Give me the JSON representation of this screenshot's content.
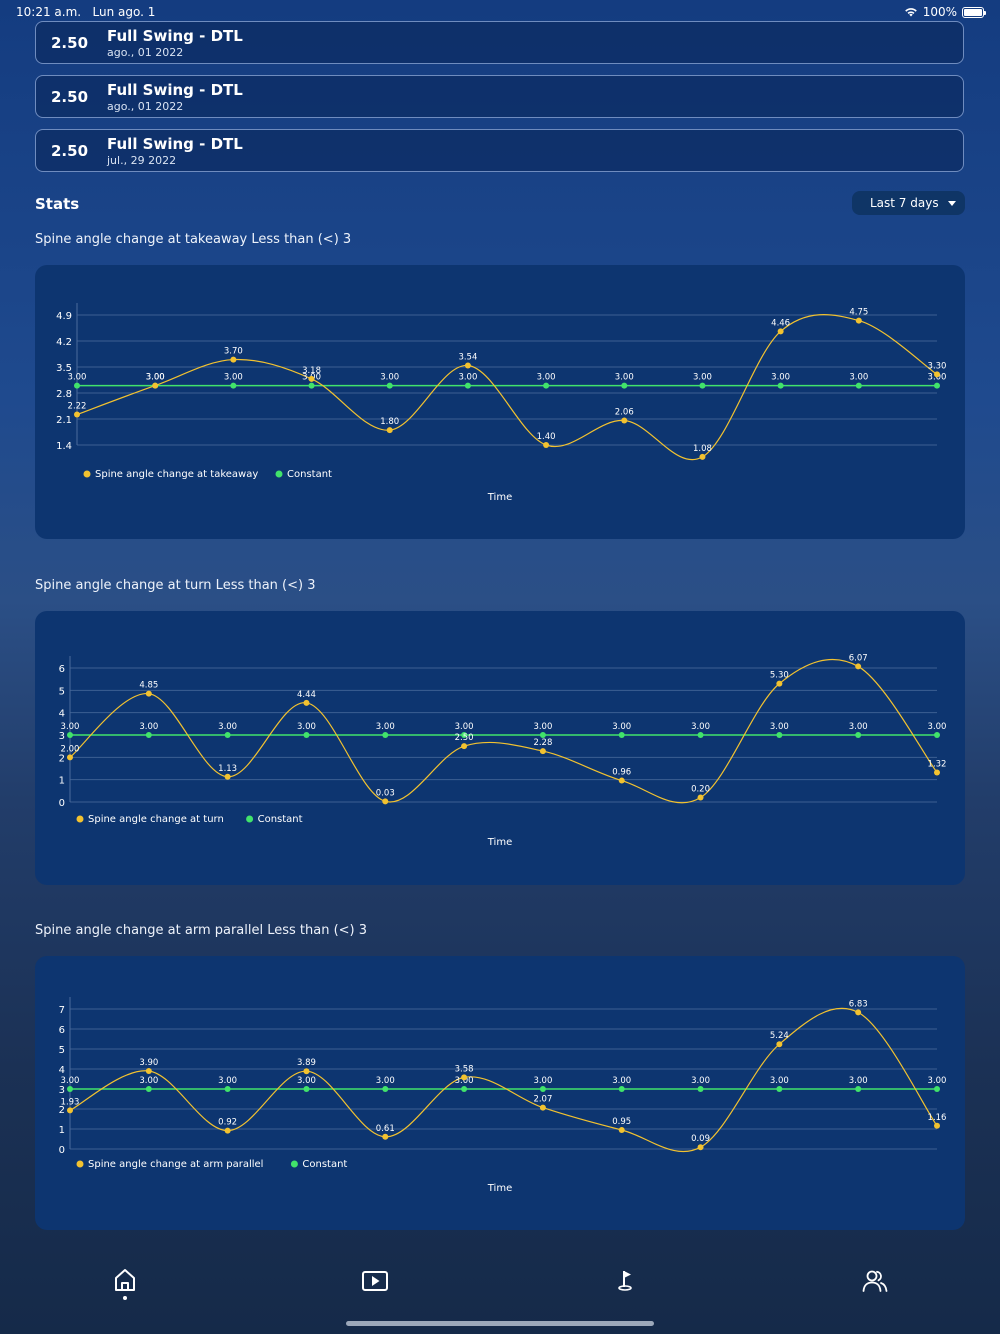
{
  "status_bar": {
    "time": "10:21 a.m.",
    "date": "Lun ago. 1",
    "battery": "100%",
    "battery_level": 1.0
  },
  "sessions": [
    {
      "score": "2.50",
      "name": "Full Swing - DTL",
      "date": "ago., 01 2022"
    },
    {
      "score": "2.50",
      "name": "Full Swing - DTL",
      "date": "ago., 01 2022"
    },
    {
      "score": "2.50",
      "name": "Full Swing - DTL",
      "date": "jul., 29 2022"
    }
  ],
  "stats": {
    "title": "Stats",
    "range_label": "Last 7 days"
  },
  "charts": [
    {
      "title": "Spine angle change at takeaway Less than (<) 3"
    },
    {
      "title": "Spine angle change at turn Less than (<) 3"
    },
    {
      "title": "Spine angle change at arm parallel Less than (<) 3"
    }
  ],
  "chart_data": [
    {
      "type": "line",
      "title": "",
      "xlabel": "Time",
      "ylabel": "",
      "yticks": [
        1.4,
        2.1,
        2.8,
        3.5,
        4.2,
        4.9
      ],
      "ylim": [
        1.4,
        4.9
      ],
      "grid": true,
      "legend": "bottom-left",
      "series": [
        {
          "name": "Spine angle change at takeaway",
          "color": "#f2c230",
          "smooth": true,
          "values": [
            2.22,
            3.0,
            3.7,
            3.18,
            1.8,
            3.54,
            1.4,
            2.06,
            1.08,
            4.46,
            4.75,
            3.3
          ]
        },
        {
          "name": "Constant",
          "color": "#41e36b",
          "smooth": false,
          "values": [
            3.0,
            3.0,
            3.0,
            3.0,
            3.0,
            3.0,
            3.0,
            3.0,
            3.0,
            3.0,
            3.0,
            3.0
          ]
        }
      ]
    },
    {
      "type": "line",
      "title": "",
      "xlabel": "Time",
      "ylabel": "",
      "yticks": [
        0,
        1,
        2,
        3,
        4,
        5,
        6
      ],
      "ylim": [
        0,
        6
      ],
      "grid": true,
      "legend": "bottom-left",
      "series": [
        {
          "name": "Spine angle change at turn",
          "color": "#f2c230",
          "smooth": true,
          "values": [
            2.0,
            4.85,
            1.13,
            4.44,
            0.03,
            2.5,
            2.28,
            0.96,
            0.2,
            5.3,
            6.07,
            1.32
          ]
        },
        {
          "name": "Constant",
          "color": "#41e36b",
          "smooth": false,
          "values": [
            3.0,
            3.0,
            3.0,
            3.0,
            3.0,
            3.0,
            3.0,
            3.0,
            3.0,
            3.0,
            3.0,
            3.0
          ]
        }
      ]
    },
    {
      "type": "line",
      "title": "",
      "xlabel": "Time",
      "ylabel": "",
      "yticks": [
        0,
        1,
        2,
        3,
        4,
        5,
        6,
        7
      ],
      "ylim": [
        0,
        7
      ],
      "grid": true,
      "legend": "bottom-left",
      "series": [
        {
          "name": "Spine angle change at arm parallel",
          "color": "#f2c230",
          "smooth": true,
          "values": [
            1.93,
            3.9,
            0.92,
            3.89,
            0.61,
            3.58,
            2.07,
            0.95,
            0.09,
            5.24,
            6.83,
            1.16
          ]
        },
        {
          "name": "Constant",
          "color": "#41e36b",
          "smooth": false,
          "values": [
            3.0,
            3.0,
            3.0,
            3.0,
            3.0,
            3.0,
            3.0,
            3.0,
            3.0,
            3.0,
            3.0,
            3.0
          ]
        }
      ]
    }
  ],
  "tabs": [
    {
      "icon": "home-icon",
      "active": true
    },
    {
      "icon": "play-icon",
      "active": false
    },
    {
      "icon": "golf-flag-icon",
      "active": false
    },
    {
      "icon": "users-icon",
      "active": false
    }
  ]
}
